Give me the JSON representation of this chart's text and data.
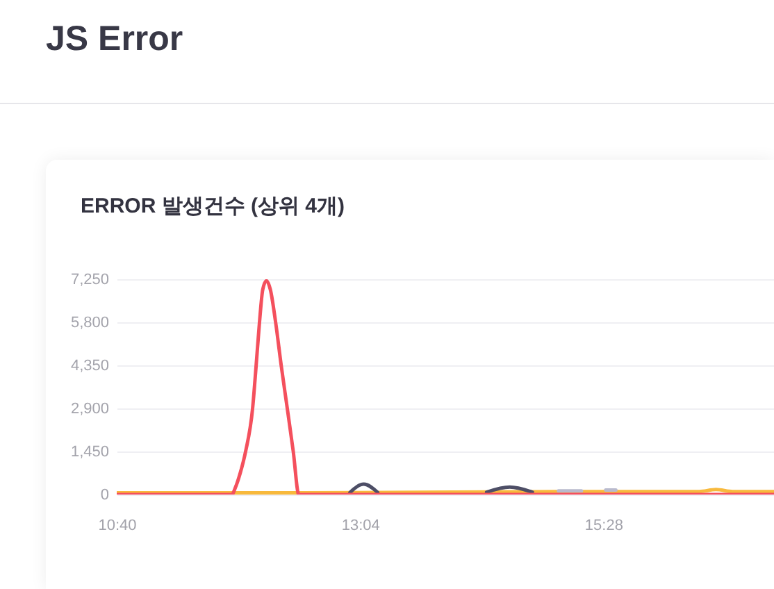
{
  "chart_data": {
    "type": "line",
    "title": "JS Error",
    "subtitle": "ERROR 발생건수 (상위 4개)",
    "xlim": [
      10.6667,
      17.15
    ],
    "xticks": [
      {
        "value": 10.6667,
        "label": "10:40"
      },
      {
        "value": 13.0667,
        "label": "13:04"
      },
      {
        "value": 15.4667,
        "label": "15:28"
      }
    ],
    "ylim": [
      0,
      7250
    ],
    "yticks": [
      0,
      {
        "value": 1450,
        "label": "1,450"
      },
      {
        "value": 2900,
        "label": "2,900"
      },
      {
        "value": 4350,
        "label": "4,350"
      },
      {
        "value": 5800,
        "label": "5,800"
      },
      {
        "value": 7250,
        "label": "7,250"
      }
    ],
    "grid": "y",
    "line_style": "solid",
    "series": [
      {
        "color": "#f8b93c",
        "x": [
          10.6667,
          12.5,
          14.0,
          15.0,
          16.413,
          16.578,
          16.742,
          17.15
        ],
        "values": [
          60,
          60,
          80,
          100,
          100,
          170,
          100,
          100
        ]
      },
      {
        "color": "#b9bacd",
        "x": [
          15.024,
          15.251,
          15.4,
          15.49,
          15.59
        ],
        "values": [
          120,
          120,
          null,
          150,
          150
        ]
      },
      {
        "color": "#4d4e66",
        "x": [
          12.967,
          13.104,
          13.241,
          13.8,
          14.315,
          14.544,
          14.767
        ],
        "values": [
          70,
          350,
          70,
          null,
          80,
          250,
          80
        ]
      },
      {
        "color": "#f4505d",
        "x": [
          10.6667,
          11.801,
          11.839,
          11.883,
          11.938,
          12.007,
          12.042,
          12.075,
          12.107,
          12.144,
          12.182,
          12.234,
          12.289,
          12.349,
          12.408,
          12.463,
          17.15
        ],
        "values": [
          0,
          0,
          250,
          700,
          1450,
          2900,
          4350,
          5800,
          6900,
          7200,
          6900,
          5800,
          4350,
          2900,
          1450,
          0,
          0
        ]
      }
    ]
  }
}
